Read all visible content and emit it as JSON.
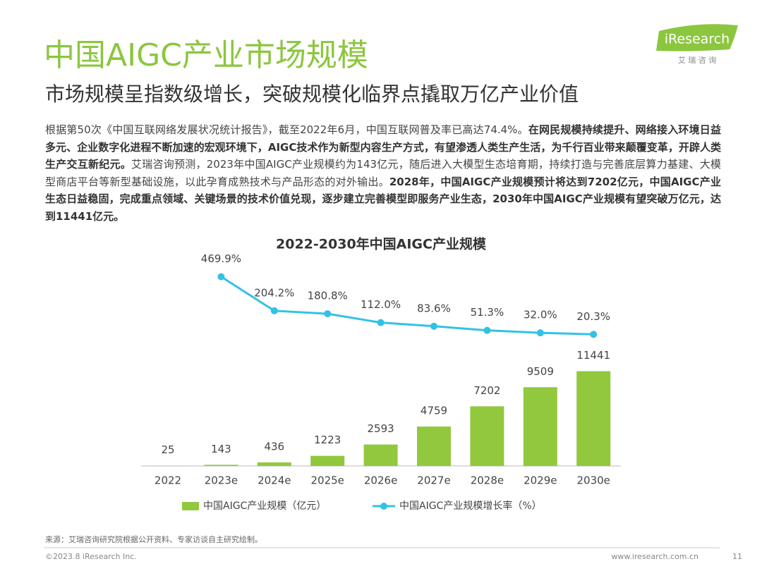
{
  "header": {
    "title": "中国AIGC产业市场规模",
    "subtitle": "市场规模呈指数级增长，突破规模化临界点撬取万亿产业价值",
    "logo": "iResearch",
    "logo_sub": "艾 瑞 咨 询"
  },
  "body": [
    {
      "text": "根据第50次《中国互联网络发展状况统计报告》，截至2022年6月，中国互联网普及率已高达74.4%。",
      "bold": false
    },
    {
      "text": "在网民规模持续提升、网络接入环境日益多元、企业数字化进程不断加速的宏观环境下，AIGC技术作为新型内容生产方式，有望渗透人类生产生活，为千行百业带来颠覆变革，开辟人类生产交互新纪元。",
      "bold": true
    },
    {
      "text": "艾瑞咨询预测，2023年中国AIGC产业规模约为143亿元，随后进入大模型生态培育期，持续打造与完善底层算力基建、大模型商店平台等新型基础设施，以此孕育成熟技术与产品形态的对外输出。",
      "bold": false
    },
    {
      "text": "2028年，中国AIGC产业规模预计将达到7202亿元，中国AIGC产业生态日益稳固，完成重点领域、关键场景的技术价值兑现，逐步建立完善模型即服务产业生态，2030年中国AIGC产业规模有望突破万亿元，达到11441亿元。",
      "bold": true
    }
  ],
  "chart_data": {
    "type": "bar_line",
    "title": "2022-2030年中国AIGC产业规模",
    "categories": [
      "2022",
      "2023e",
      "2024e",
      "2025e",
      "2026e",
      "2027e",
      "2028e",
      "2029e",
      "2030e"
    ],
    "series": [
      {
        "name": "中国AIGC产业规模（亿元）",
        "type": "bar",
        "color": "#92c83e",
        "values": [
          25,
          143,
          436,
          1223,
          2593,
          4759,
          7202,
          9509,
          11441
        ]
      },
      {
        "name": "中国AIGC产业规模增长率（%）",
        "type": "line",
        "axis": "y2",
        "color": "#33c1e6",
        "values": [
          null,
          469.9,
          204.2,
          180.8,
          112.0,
          83.6,
          51.3,
          32.0,
          20.3
        ],
        "value_labels": [
          null,
          "469.9%",
          "204.2%",
          "180.8%",
          "112.0%",
          "83.6%",
          "51.3%",
          "32.0%",
          "20.3%"
        ]
      }
    ],
    "ylim": [
      0,
      12000
    ],
    "y2lim": [
      0,
      500
    ],
    "legend": "bottom"
  },
  "source": "来源：艾瑞咨询研究院根据公开资料、专家访谈自主研究绘制。",
  "footer": {
    "copyright": "©2023.8 iResearch Inc.",
    "site": "www.iresearch.com.cn",
    "page": "11"
  }
}
